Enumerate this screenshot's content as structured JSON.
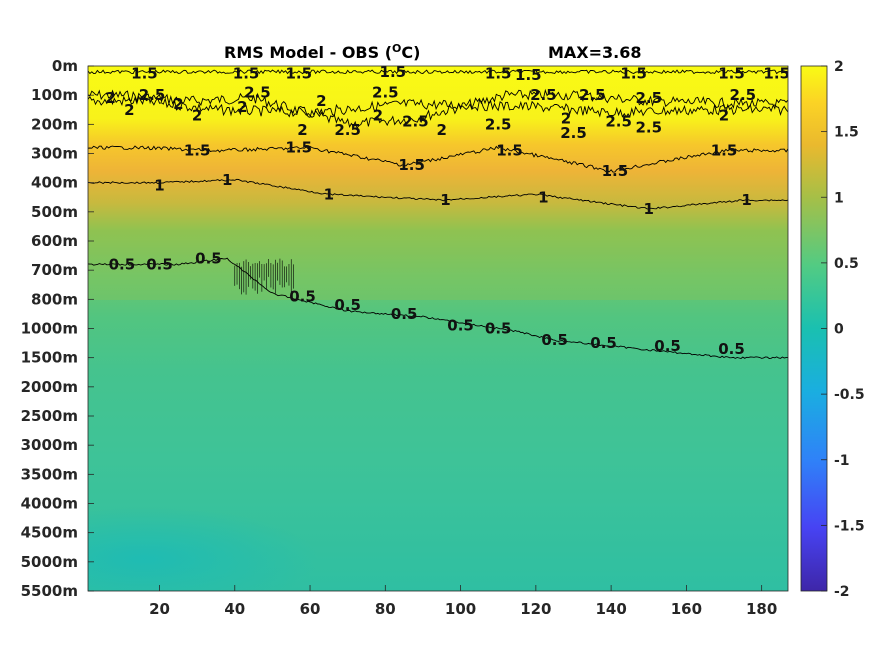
{
  "chart_data": {
    "type": "heatmap",
    "title": "RMS Model - OBS (",
    "title_unit_sup": "O",
    "title_unit_tail": "C)",
    "max_label": "MAX=3.68",
    "y_ticks": [
      "0m",
      "100m",
      "200m",
      "300m",
      "400m",
      "500m",
      "600m",
      "700m",
      "800m",
      "1000m",
      "1500m",
      "2000m",
      "2500m",
      "3000m",
      "3500m",
      "4000m",
      "4500m",
      "5000m",
      "5500m"
    ],
    "x_ticks": [
      20,
      40,
      60,
      80,
      100,
      120,
      140,
      160,
      180
    ],
    "xlim": [
      1,
      187
    ],
    "colorbar": {
      "ticks": [
        2,
        1.5,
        1,
        0.5,
        0,
        -0.5,
        -1,
        -1.5,
        -2
      ],
      "tick_labels": [
        "2",
        "1.5",
        "1",
        "0.5",
        "0",
        "-0.5",
        "-1",
        "-1.5",
        "-2"
      ],
      "range": [
        -2,
        2
      ],
      "colormap": [
        "#3e26a8",
        "#4743f3",
        "#2f82f8",
        "#1aaee0",
        "#1ac0b0",
        "#52cb83",
        "#a6bf47",
        "#eab92e",
        "#fbd325",
        "#f9fb14"
      ]
    },
    "layers": [
      {
        "depth_index_top": 0,
        "depth_index_bottom": 3,
        "value_approx": 2.0
      },
      {
        "depth_index_top": 3,
        "depth_index_bottom": 4.5,
        "value_approx": 1.3
      },
      {
        "depth_index_top": 4.5,
        "depth_index_bottom": 8,
        "value_approx": 0.8
      },
      {
        "depth_index_top": 8,
        "depth_index_bottom": 10,
        "value_approx": 0.5
      },
      {
        "depth_index_top": 10,
        "depth_index_bottom": 18,
        "value_approx": 0.3
      }
    ],
    "contours": [
      {
        "level": "2.5",
        "labels_x": [
          10,
          28,
          45,
          70,
          88,
          112,
          130,
          150,
          178
        ],
        "depth_index": [
          1.0,
          1.2,
          1.1,
          2.0,
          1.8,
          1.0,
          1.0,
          1.2,
          1.3
        ]
      },
      {
        "level": "2",
        "labels_x": [
          15,
          35,
          60,
          85,
          120,
          140,
          165
        ],
        "depth_index": [
          1.2,
          1.5,
          1.6,
          1.3,
          1.4,
          1.6,
          1.5
        ]
      },
      {
        "level": "1.5",
        "labels_x": [
          5,
          25,
          45,
          65,
          95,
          115,
          145,
          165,
          180
        ],
        "depth_index": [
          0.2,
          0.2,
          0.2,
          0.2,
          0.2,
          0.2,
          0.2,
          0.2,
          0.2
        ]
      },
      {
        "level": "1.5",
        "labels_x": [
          15,
          35,
          60,
          85,
          110,
          140,
          170
        ],
        "depth_index": [
          2.8,
          2.9,
          2.8,
          3.4,
          2.8,
          3.6,
          2.9
        ]
      },
      {
        "level": "1",
        "labels_x": [
          20,
          40,
          65,
          95,
          120,
          150,
          175
        ],
        "depth_index": [
          4.0,
          3.9,
          4.4,
          4.6,
          4.4,
          4.9,
          4.6
        ]
      },
      {
        "level": "0.5",
        "labels_x": [
          10,
          25,
          38,
          50,
          70,
          90,
          105,
          115,
          125,
          140,
          155,
          172
        ],
        "depth_index": [
          6.8,
          6.8,
          6.6,
          7.8,
          8.4,
          8.6,
          8.9,
          9.1,
          9.4,
          9.6,
          9.8,
          10.0
        ]
      }
    ],
    "contour_labels": [
      {
        "text": "1.5",
        "x": 16,
        "d": 0.25
      },
      {
        "text": "1.5",
        "x": 43,
        "d": 0.25
      },
      {
        "text": "1.5",
        "x": 57,
        "d": 0.25
      },
      {
        "text": "1.5",
        "x": 82,
        "d": 0.2
      },
      {
        "text": "1.5",
        "x": 110,
        "d": 0.25
      },
      {
        "text": "1.5",
        "x": 118,
        "d": 0.3
      },
      {
        "text": "1.5",
        "x": 146,
        "d": 0.25
      },
      {
        "text": "1.5",
        "x": 172,
        "d": 0.25
      },
      {
        "text": "1.5",
        "x": 184,
        "d": 0.25
      },
      {
        "text": "2",
        "x": 7,
        "d": 1.1
      },
      {
        "text": "2",
        "x": 12,
        "d": 1.5
      },
      {
        "text": "2.5",
        "x": 18,
        "d": 1.0
      },
      {
        "text": "2",
        "x": 25,
        "d": 1.3
      },
      {
        "text": "2",
        "x": 30,
        "d": 1.7
      },
      {
        "text": "2.5",
        "x": 46,
        "d": 0.9
      },
      {
        "text": "2",
        "x": 42,
        "d": 1.4
      },
      {
        "text": "2",
        "x": 63,
        "d": 1.2
      },
      {
        "text": "2.5",
        "x": 70,
        "d": 2.2
      },
      {
        "text": "2",
        "x": 58,
        "d": 2.2
      },
      {
        "text": "2",
        "x": 78,
        "d": 1.7
      },
      {
        "text": "2.5",
        "x": 80,
        "d": 0.9
      },
      {
        "text": "2.5",
        "x": 88,
        "d": 1.9
      },
      {
        "text": "2",
        "x": 95,
        "d": 2.2
      },
      {
        "text": "2.5",
        "x": 110,
        "d": 2.0
      },
      {
        "text": "2.5",
        "x": 122,
        "d": 1.0
      },
      {
        "text": "2.5",
        "x": 135,
        "d": 1.0
      },
      {
        "text": "2",
        "x": 128,
        "d": 1.8
      },
      {
        "text": "2.5",
        "x": 130,
        "d": 2.3
      },
      {
        "text": "2.5",
        "x": 142,
        "d": 1.9
      },
      {
        "text": "2.5",
        "x": 150,
        "d": 2.1
      },
      {
        "text": "2.5",
        "x": 150,
        "d": 1.1
      },
      {
        "text": "2.5",
        "x": 175,
        "d": 1.0
      },
      {
        "text": "2",
        "x": 170,
        "d": 1.7
      },
      {
        "text": "1.5",
        "x": 30,
        "d": 2.9
      },
      {
        "text": "1.5",
        "x": 57,
        "d": 2.8
      },
      {
        "text": "1.5",
        "x": 87,
        "d": 3.4
      },
      {
        "text": "1.5",
        "x": 113,
        "d": 2.9
      },
      {
        "text": "1.5",
        "x": 141,
        "d": 3.6
      },
      {
        "text": "1.5",
        "x": 170,
        "d": 2.9
      },
      {
        "text": "1",
        "x": 20,
        "d": 4.1
      },
      {
        "text": "1",
        "x": 38,
        "d": 3.9
      },
      {
        "text": "1",
        "x": 65,
        "d": 4.4
      },
      {
        "text": "1",
        "x": 96,
        "d": 4.6
      },
      {
        "text": "1",
        "x": 122,
        "d": 4.5
      },
      {
        "text": "1",
        "x": 150,
        "d": 4.9
      },
      {
        "text": "1",
        "x": 176,
        "d": 4.6
      },
      {
        "text": "0.5",
        "x": 10,
        "d": 6.8
      },
      {
        "text": "0.5",
        "x": 20,
        "d": 6.8
      },
      {
        "text": "0.5",
        "x": 33,
        "d": 6.6
      },
      {
        "text": "0.5",
        "x": 58,
        "d": 7.9
      },
      {
        "text": "0.5",
        "x": 70,
        "d": 8.2
      },
      {
        "text": "0.5",
        "x": 85,
        "d": 8.5
      },
      {
        "text": "0.5",
        "x": 100,
        "d": 8.9
      },
      {
        "text": "0.5",
        "x": 110,
        "d": 9.0
      },
      {
        "text": "0.5",
        "x": 125,
        "d": 9.4
      },
      {
        "text": "0.5",
        "x": 138,
        "d": 9.5
      },
      {
        "text": "0.5",
        "x": 155,
        "d": 9.6
      },
      {
        "text": "0.5",
        "x": 172,
        "d": 9.7
      }
    ]
  }
}
